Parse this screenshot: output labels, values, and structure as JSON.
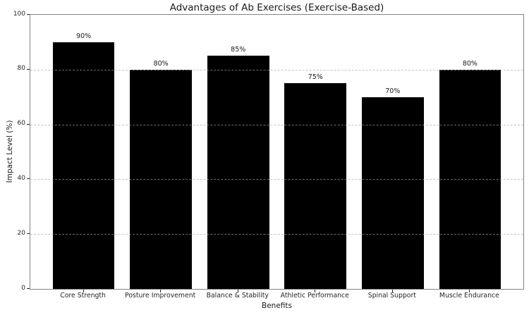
{
  "chart_data": {
    "type": "bar",
    "title": "Advantages of Ab Exercises (Exercise-Based)",
    "categories": [
      "Core Strength",
      "Posture Improvement",
      "Balance & Stability",
      "Athletic Performance",
      "Spinal Support",
      "Muscle Endurance"
    ],
    "values": [
      90,
      80,
      85,
      75,
      70,
      80
    ],
    "value_labels": [
      "90%",
      "80%",
      "85%",
      "75%",
      "70%",
      "80%"
    ],
    "xlabel": "Benefits",
    "ylabel": "Impact Level (%)",
    "ylim": [
      0,
      100
    ],
    "yticks": [
      0,
      20,
      40,
      60,
      80,
      100
    ],
    "grid": "horizontal-dashed-over-bars",
    "legend": "none",
    "bar_color": "#000000",
    "grid_color": "#a5a5a5",
    "spine_color": "#848484",
    "tick_color": "#262626",
    "background_color": "#ffffff"
  }
}
